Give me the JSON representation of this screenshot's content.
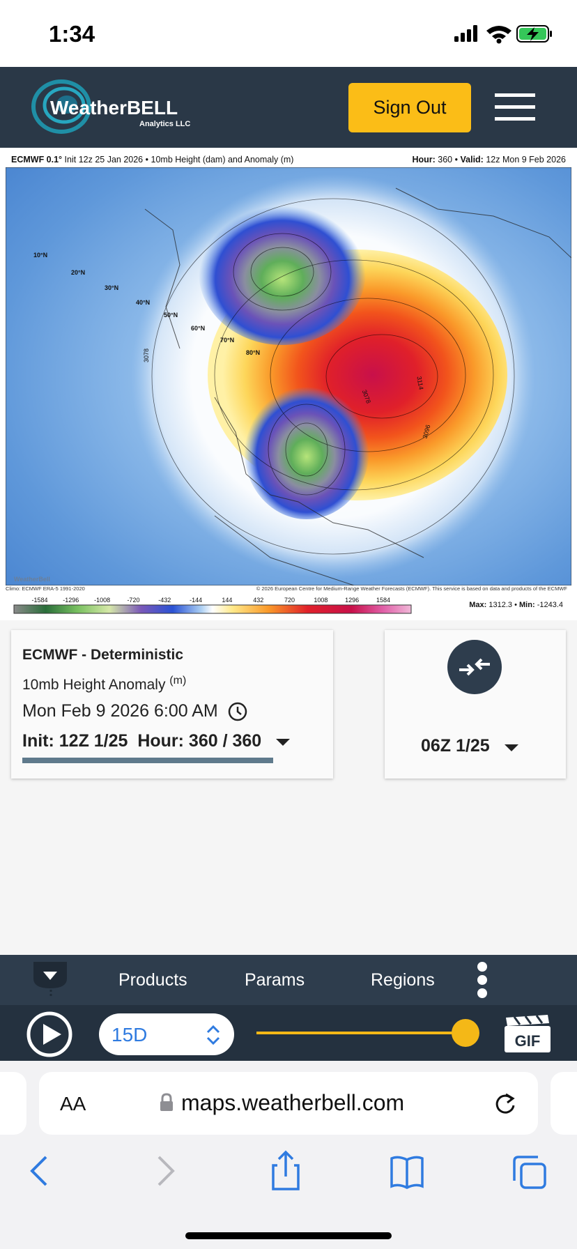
{
  "status_bar": {
    "time": "1:34"
  },
  "header": {
    "logo": "WeatherBELL",
    "logo_sub": "Analytics LLC",
    "sign_out": "Sign Out"
  },
  "map": {
    "model": "ECMWF 0.1°",
    "init_text": "Init 12z 25 Jan 2026",
    "separator": "•",
    "field_text": "10mb Height (dam) and Anomaly (m)",
    "hour_label": "Hour:",
    "hour_value": "360",
    "valid_label": "Valid:",
    "valid_value": "12z Mon 9 Feb 2026",
    "latitude_labels": [
      "10°N",
      "20°N",
      "30°N",
      "40°N",
      "50°N",
      "60°N",
      "70°N",
      "80°N"
    ],
    "contour_labels": [
      "3078",
      "3078",
      "3114",
      "3096"
    ],
    "watermark": "WeatherBell",
    "climo": "Climo: ECMWF ERA-5 1991-2020",
    "copyright": "© 2026 European Centre for Medium-Range Weather Forecasts (ECMWF). This service is based on data and products of the ECMWF",
    "colorbar_labels": [
      "-1584",
      "-1296",
      "-1008",
      "-720",
      "-432",
      "-144",
      "144",
      "432",
      "720",
      "1008",
      "1296",
      "1584"
    ],
    "max_label": "Max:",
    "max_value": "1312.3",
    "min_label": "Min:",
    "min_value": "-1243.4"
  },
  "card": {
    "model": "ECMWF - Deterministic",
    "param": "10mb Height Anomaly",
    "unit": "(m)",
    "valid": "Mon Feb 9 2026 6:00 AM",
    "init_hour": "Init: 12Z 1/25  Hour: 360 / 360"
  },
  "compare_card": {
    "run": "06Z 1/25"
  },
  "toolbar": {
    "products": "Products",
    "params": "Params",
    "regions": "Regions",
    "range": "15D",
    "gif": "GIF"
  },
  "browser": {
    "text_size": "AA",
    "url": "maps.weatherbell.com"
  }
}
